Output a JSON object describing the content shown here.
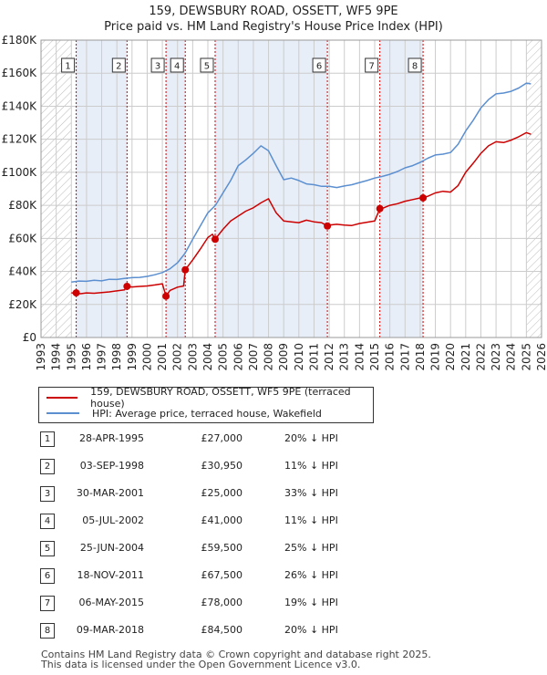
{
  "title": {
    "line1": "159, DEWSBURY ROAD, OSSETT, WF5 9PE",
    "line2": "Price paid vs. HM Land Registry's House Price Index (HPI)"
  },
  "colors": {
    "price": "#cc0000",
    "hpi": "#5b8fd0",
    "shade": "#e8eef8",
    "grid": "#cccccc",
    "hatch": "#bbbbbb"
  },
  "legend": {
    "price_label": "159, DEWSBURY ROAD, OSSETT, WF5 9PE (terraced house)",
    "hpi_label": "HPI: Average price, terraced house, Wakefield"
  },
  "chart_data": {
    "type": "line",
    "title": "Price paid vs. HM Land Registry's House Price Index (HPI)",
    "xlim": [
      1993.0,
      2026.0
    ],
    "ylim": [
      0,
      180000
    ],
    "x_ticks": [
      1993,
      1994,
      1995,
      1996,
      1997,
      1998,
      1999,
      2000,
      2001,
      2002,
      2003,
      2004,
      2005,
      2006,
      2007,
      2008,
      2009,
      2010,
      2011,
      2012,
      2013,
      2014,
      2015,
      2016,
      2017,
      2018,
      2019,
      2020,
      2021,
      2022,
      2023,
      2024,
      2025,
      2026
    ],
    "y_ticks": [
      0,
      20000,
      40000,
      60000,
      80000,
      100000,
      120000,
      140000,
      160000,
      180000
    ],
    "y_tick_labels": [
      "£0",
      "£20K",
      "£40K",
      "£60K",
      "£80K",
      "£100K",
      "£120K",
      "£140K",
      "£160K",
      "£180K"
    ],
    "hatched_before": 1995.0,
    "hatched_after": 2025.0,
    "shaded_spans": [
      [
        1995.32,
        1998.67
      ],
      [
        2001.24,
        2002.51
      ],
      [
        2004.48,
        2011.88
      ],
      [
        2015.34,
        2018.19
      ]
    ],
    "series": [
      {
        "name": "HPI: Average price, terraced house, Wakefield",
        "x": [
          1995.0,
          1995.5,
          1996.0,
          1996.5,
          1997.0,
          1997.5,
          1998.0,
          1998.5,
          1999.0,
          1999.5,
          2000.0,
          2000.5,
          2001.0,
          2001.5,
          2002.0,
          2002.5,
          2003.0,
          2003.5,
          2004.0,
          2004.5,
          2005.0,
          2005.5,
          2006.0,
          2006.5,
          2007.0,
          2007.5,
          2008.0,
          2008.5,
          2009.0,
          2009.5,
          2010.0,
          2010.5,
          2011.0,
          2011.5,
          2012.0,
          2012.5,
          2013.0,
          2013.5,
          2014.0,
          2014.5,
          2015.0,
          2015.5,
          2016.0,
          2016.5,
          2017.0,
          2017.5,
          2018.0,
          2018.5,
          2019.0,
          2019.5,
          2020.0,
          2020.5,
          2021.0,
          2021.5,
          2022.0,
          2022.5,
          2023.0,
          2023.5,
          2024.0,
          2024.5,
          2025.0,
          2025.3
        ],
        "values": [
          33500,
          34200,
          34000,
          34600,
          34300,
          35200,
          35100,
          35800,
          36200,
          36400,
          37000,
          38000,
          39300,
          41600,
          45200,
          51000,
          59500,
          67500,
          75500,
          80000,
          87500,
          95000,
          104000,
          107500,
          111500,
          116000,
          113000,
          104000,
          95500,
          96500,
          95000,
          93000,
          92500,
          91500,
          91500,
          90800,
          91700,
          92500,
          93800,
          95000,
          96500,
          97500,
          98800,
          100500,
          102700,
          104000,
          106000,
          108500,
          110500,
          111000,
          112000,
          117000,
          125000,
          131500,
          139000,
          144000,
          147500,
          148000,
          149000,
          151000,
          154000,
          153500
        ]
      },
      {
        "name": "159, DEWSBURY ROAD, OSSETT, WF5 9PE (terraced house)",
        "x": [
          1995.0,
          1995.32,
          1995.6,
          1996.0,
          1996.5,
          1997.0,
          1997.5,
          1998.0,
          1998.5,
          1998.67,
          1999.0,
          1999.5,
          2000.0,
          2000.5,
          2001.0,
          2001.24,
          2001.5,
          2002.0,
          2002.4,
          2002.51,
          2003.0,
          2003.5,
          2004.0,
          2004.3,
          2004.48,
          2005.0,
          2005.5,
          2006.0,
          2006.5,
          2007.0,
          2007.5,
          2008.0,
          2008.5,
          2009.0,
          2009.5,
          2010.0,
          2010.5,
          2011.0,
          2011.5,
          2011.88,
          2012.0,
          2012.5,
          2013.0,
          2013.5,
          2014.0,
          2014.5,
          2015.0,
          2015.34,
          2015.6,
          2016.0,
          2016.5,
          2017.0,
          2017.5,
          2018.0,
          2018.19,
          2018.5,
          2019.0,
          2019.5,
          2020.0,
          2020.5,
          2021.0,
          2021.5,
          2022.0,
          2022.5,
          2023.0,
          2023.5,
          2024.0,
          2024.5,
          2025.0,
          2025.3
        ],
        "values": [
          27000,
          27000,
          26500,
          27000,
          26800,
          27200,
          27600,
          28200,
          28800,
          30950,
          30600,
          30900,
          31200,
          31800,
          32500,
          25000,
          28500,
          30500,
          31200,
          41000,
          47000,
          53500,
          60500,
          62500,
          59500,
          65500,
          70500,
          73500,
          76500,
          78500,
          81500,
          84000,
          75500,
          70500,
          70000,
          69500,
          71000,
          70000,
          69500,
          67500,
          68000,
          68500,
          68000,
          67800,
          69000,
          69800,
          70500,
          78000,
          78500,
          80000,
          81000,
          82500,
          83500,
          84500,
          84500,
          85500,
          87500,
          88500,
          88000,
          92000,
          100000,
          105500,
          111500,
          116000,
          118500,
          118000,
          119500,
          121500,
          124000,
          123000
        ]
      }
    ],
    "markers": [
      {
        "label": "1",
        "x": 1995.32,
        "y": 27000
      },
      {
        "label": "2",
        "x": 1998.67,
        "y": 30950
      },
      {
        "label": "3",
        "x": 2001.24,
        "y": 25000
      },
      {
        "label": "4",
        "x": 2002.51,
        "y": 41000
      },
      {
        "label": "5",
        "x": 2004.48,
        "y": 59500
      },
      {
        "label": "6",
        "x": 2011.88,
        "y": 67500
      },
      {
        "label": "7",
        "x": 2015.34,
        "y": 78000
      },
      {
        "label": "8",
        "x": 2018.19,
        "y": 84500
      }
    ]
  },
  "sales": [
    {
      "num": "1",
      "date": "28-APR-1995",
      "price": "£27,000",
      "hpi": "20% ↓ HPI"
    },
    {
      "num": "2",
      "date": "03-SEP-1998",
      "price": "£30,950",
      "hpi": "11% ↓ HPI"
    },
    {
      "num": "3",
      "date": "30-MAR-2001",
      "price": "£25,000",
      "hpi": "33% ↓ HPI"
    },
    {
      "num": "4",
      "date": "05-JUL-2002",
      "price": "£41,000",
      "hpi": "11% ↓ HPI"
    },
    {
      "num": "5",
      "date": "25-JUN-2004",
      "price": "£59,500",
      "hpi": "25% ↓ HPI"
    },
    {
      "num": "6",
      "date": "18-NOV-2011",
      "price": "£67,500",
      "hpi": "26% ↓ HPI"
    },
    {
      "num": "7",
      "date": "06-MAY-2015",
      "price": "£78,000",
      "hpi": "19% ↓ HPI"
    },
    {
      "num": "8",
      "date": "09-MAR-2018",
      "price": "£84,500",
      "hpi": "20% ↓ HPI"
    }
  ],
  "footer": {
    "line1": "Contains HM Land Registry data © Crown copyright and database right 2025.",
    "line2": "This data is licensed under the Open Government Licence v3.0."
  }
}
